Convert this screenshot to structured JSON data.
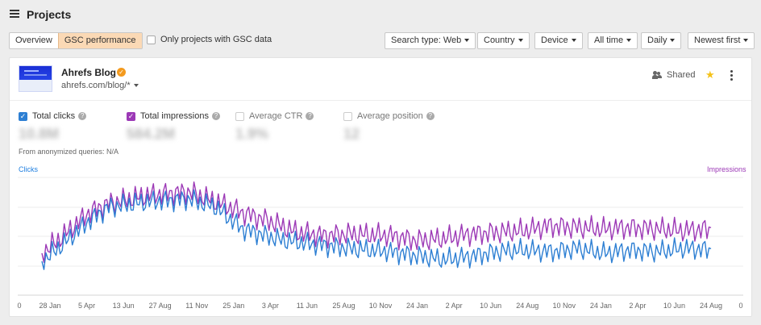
{
  "header": {
    "title": "Projects"
  },
  "tabs": [
    {
      "label": "Overview"
    },
    {
      "label": "GSC performance"
    }
  ],
  "filters": {
    "gsc_only_label": "Only projects with GSC data",
    "search_type": "Search type: Web",
    "country": "Country",
    "device": "Device",
    "range": "All time",
    "granularity": "Daily",
    "sort": "Newest first"
  },
  "project": {
    "name": "Ahrefs Blog",
    "url": "ahrefs.com/blog/*",
    "shared_label": "Shared"
  },
  "metrics": [
    {
      "label": "Total clicks",
      "value": "10.8M",
      "checked": true,
      "color": "#2d7fd3"
    },
    {
      "label": "Total impressions",
      "value": "584.2M",
      "checked": true,
      "color": "#9c39b6"
    },
    {
      "label": "Average CTR",
      "value": "1.9%",
      "checked": false
    },
    {
      "label": "Average position",
      "value": "12",
      "checked": false
    }
  ],
  "anonymized_note": "From anonymized queries: N/A",
  "chart_data": {
    "type": "line",
    "y_left_label": "Clicks",
    "y_right_label": "Impressions",
    "y_left_min_label": "0",
    "y_right_min_label": "0",
    "x_tick_labels": [
      "28 Jan",
      "5 Apr",
      "13 Jun",
      "27 Aug",
      "11 Nov",
      "25 Jan",
      "3 Apr",
      "11 Jun",
      "25 Aug",
      "10 Nov",
      "24 Jan",
      "2 Apr",
      "10 Jun",
      "24 Aug",
      "10 Nov",
      "24 Jan",
      "2 Apr",
      "10 Jun",
      "24 Aug"
    ],
    "grid": true,
    "series": [
      {
        "name": "Clicks",
        "color": "#2d7fd3"
      },
      {
        "name": "Impressions",
        "color": "#9c39b6"
      }
    ]
  },
  "icons": {
    "menu": "hamburger-icon",
    "verified": "check-badge-icon",
    "shared": "people-icon",
    "favorite": "star-icon",
    "more": "kebab-icon"
  }
}
